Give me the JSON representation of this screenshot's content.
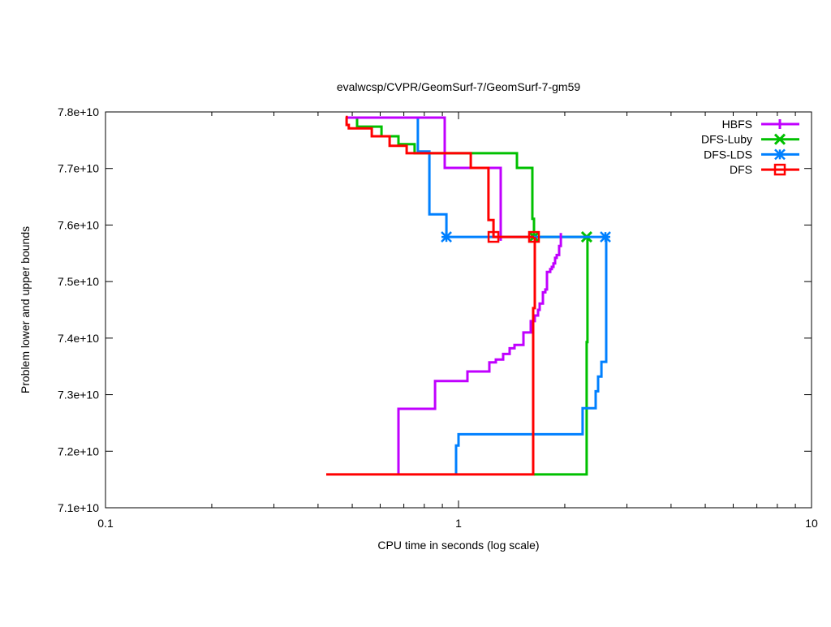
{
  "chart_data": {
    "type": "line",
    "title": "evalwcsp/CVPR/GeomSurf-7/GeomSurf-7-gm59",
    "xlabel": "CPU time in seconds (log scale)",
    "ylabel": "Problem lower and upper bounds",
    "xscale": "log",
    "xlim": [
      0.1,
      10
    ],
    "ylim": [
      71000000000.0,
      78000000000.0
    ],
    "xticks": [
      {
        "v": 0.1,
        "label": "0.1"
      },
      {
        "v": 1,
        "label": "1"
      },
      {
        "v": 10,
        "label": "10"
      }
    ],
    "yticks": [
      {
        "v": 71000000000.0,
        "label": "7.1e+10"
      },
      {
        "v": 72000000000.0,
        "label": "7.2e+10"
      },
      {
        "v": 73000000000.0,
        "label": "7.3e+10"
      },
      {
        "v": 74000000000.0,
        "label": "7.4e+10"
      },
      {
        "v": 75000000000.0,
        "label": "7.5e+10"
      },
      {
        "v": 76000000000.0,
        "label": "7.6e+10"
      },
      {
        "v": 77000000000.0,
        "label": "7.7e+10"
      },
      {
        "v": 78000000000.0,
        "label": "7.8e+10"
      }
    ],
    "grid": false,
    "legend_position": "top-right",
    "step_style": "horizontal-then-vertical",
    "series": [
      {
        "name": "HBFS",
        "color": "#c000ff",
        "marker": "plus",
        "upper": [
          [
            0.482,
            77900000000.0
          ],
          [
            0.914,
            77010000000.0
          ],
          [
            1.317,
            75720000000.0
          ]
        ],
        "lower": [
          [
            0.676,
            71590000000.0
          ],
          [
            0.676,
            72750000000.0
          ],
          [
            0.858,
            73240000000.0
          ],
          [
            1.06,
            73410000000.0
          ],
          [
            1.223,
            73570000000.0
          ],
          [
            1.276,
            73620000000.0
          ],
          [
            1.338,
            73720000000.0
          ],
          [
            1.396,
            73820000000.0
          ],
          [
            1.441,
            73880000000.0
          ],
          [
            1.527,
            74100000000.0
          ],
          [
            1.602,
            74300000000.0
          ],
          [
            1.645,
            74400000000.0
          ],
          [
            1.68,
            74500000000.0
          ],
          [
            1.698,
            74610000000.0
          ],
          [
            1.734,
            74810000000.0
          ],
          [
            1.762,
            74860000000.0
          ],
          [
            1.781,
            75170000000.0
          ],
          [
            1.819,
            75220000000.0
          ],
          [
            1.838,
            75260000000.0
          ],
          [
            1.858,
            75320000000.0
          ],
          [
            1.877,
            75420000000.0
          ],
          [
            1.897,
            75470000000.0
          ],
          [
            1.928,
            75630000000.0
          ],
          [
            1.949,
            75860000000.0
          ]
        ],
        "markers": []
      },
      {
        "name": "DFS-Luby",
        "color": "#00c000",
        "marker": "cross",
        "upper": [
          [
            0.482,
            77900000000.0
          ],
          [
            0.516,
            77740000000.0
          ],
          [
            0.605,
            77570000000.0
          ],
          [
            0.676,
            77430000000.0
          ],
          [
            0.751,
            77270000000.0
          ],
          [
            1.464,
            77010000000.0
          ],
          [
            1.619,
            76110000000.0
          ],
          [
            1.636,
            75790000000.0
          ],
          [
            2.307,
            75790000000.0
          ]
        ],
        "lower": [
          [
            1.636,
            71590000000.0
          ],
          [
            2.307,
            73930000000.0
          ],
          [
            2.319,
            75790000000.0
          ]
        ],
        "markers": [
          [
            1.636,
            75790000000.0
          ],
          [
            2.307,
            75790000000.0
          ]
        ]
      },
      {
        "name": "DFS-LDS",
        "color": "#0080ff",
        "marker": "star",
        "upper": [
          [
            0.482,
            77900000000.0
          ],
          [
            0.767,
            77300000000.0
          ],
          [
            0.827,
            76190000000.0
          ],
          [
            0.924,
            75790000000.0
          ],
          [
            2.607,
            75790000000.0
          ]
        ],
        "lower": [
          [
            0.984,
            71590000000.0
          ],
          [
            0.984,
            72100000000.0
          ],
          [
            1.0,
            72300000000.0
          ],
          [
            2.247,
            72760000000.0
          ],
          [
            2.446,
            73060000000.0
          ],
          [
            2.486,
            73320000000.0
          ],
          [
            2.54,
            73580000000.0
          ],
          [
            2.621,
            75790000000.0
          ]
        ],
        "markers": [
          [
            0.924,
            75790000000.0
          ],
          [
            2.607,
            75790000000.0
          ]
        ]
      },
      {
        "name": "DFS",
        "color": "#ff0000",
        "marker": "square",
        "upper": [
          [
            0.479,
            77910000000.0
          ],
          [
            0.482,
            77770000000.0
          ],
          [
            0.489,
            77710000000.0
          ],
          [
            0.568,
            77570000000.0
          ],
          [
            0.638,
            77400000000.0
          ],
          [
            0.713,
            77270000000.0
          ],
          [
            1.083,
            77010000000.0
          ],
          [
            1.216,
            76090000000.0
          ],
          [
            1.256,
            75790000000.0
          ],
          [
            1.636,
            75790000000.0
          ]
        ],
        "lower": [
          [
            0.422,
            71590000000.0
          ],
          [
            1.627,
            74530000000.0
          ],
          [
            1.645,
            75790000000.0
          ]
        ],
        "markers": [
          [
            1.256,
            75790000000.0
          ],
          [
            1.636,
            75790000000.0
          ]
        ]
      }
    ]
  }
}
